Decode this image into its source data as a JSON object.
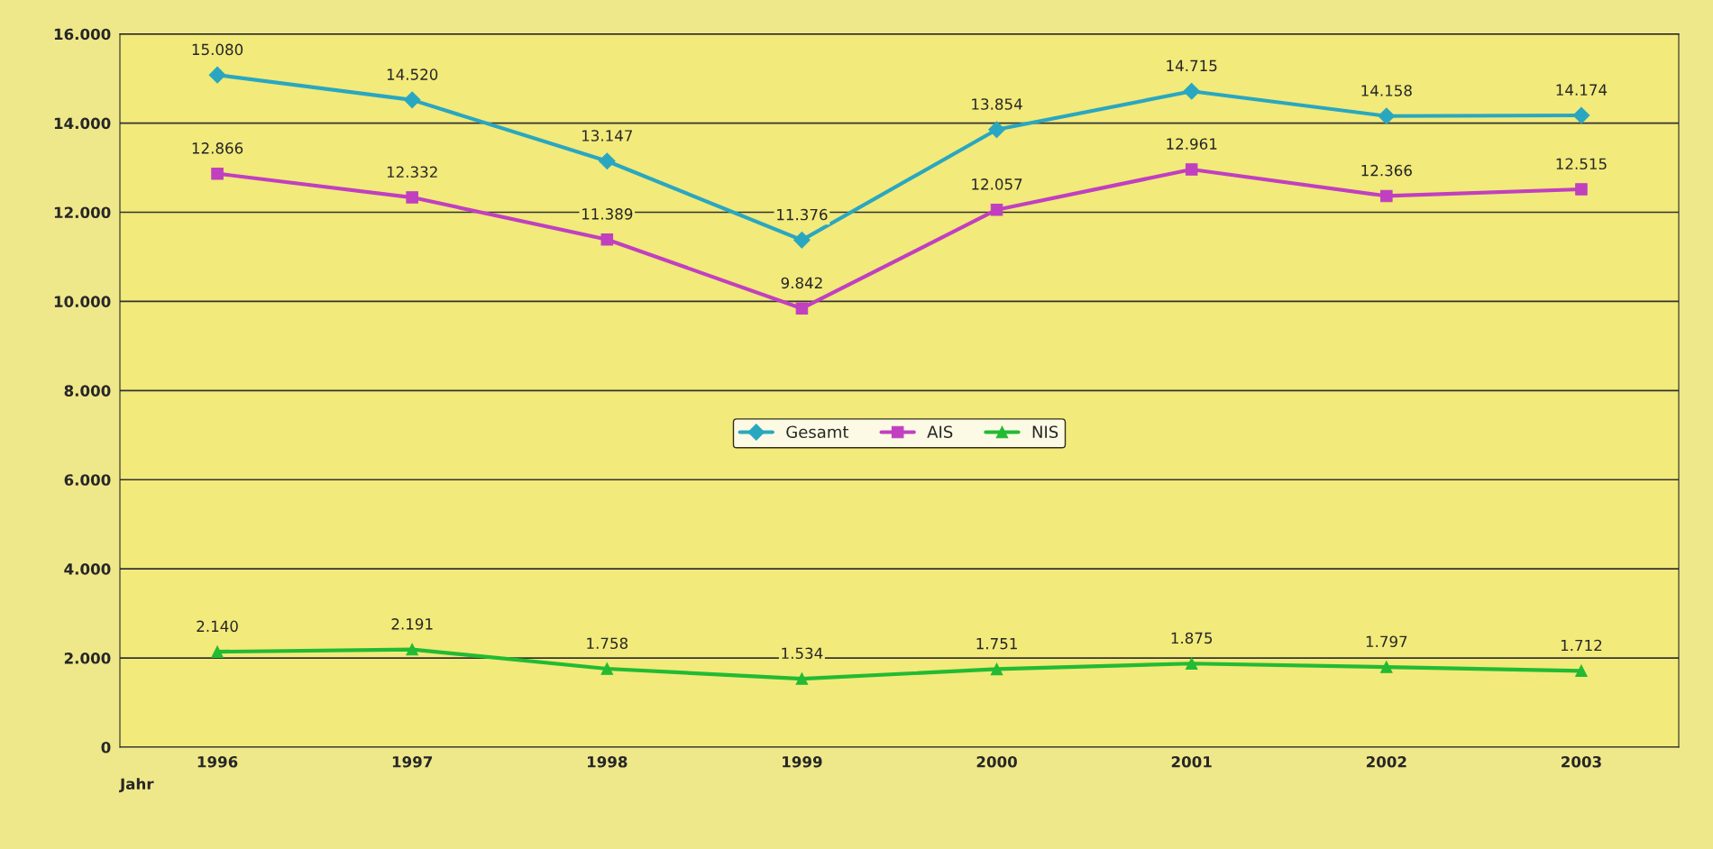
{
  "chart_data": {
    "type": "line",
    "xlabel": "Jahr",
    "categories": [
      "1996",
      "1997",
      "1998",
      "1999",
      "2000",
      "2001",
      "2002",
      "2003"
    ],
    "series": [
      {
        "name": "Gesamt",
        "color": "#2aa7c0",
        "marker": "diamond",
        "values": [
          15080,
          14520,
          13147,
          11376,
          13854,
          14715,
          14158,
          14174
        ],
        "value_labels": [
          "15.080",
          "14.520",
          "13.147",
          "11.376",
          "13.854",
          "14.715",
          "14.158",
          "14.174"
        ]
      },
      {
        "name": "AIS",
        "color": "#c040c0",
        "marker": "square",
        "values": [
          12866,
          12332,
          11389,
          9842,
          12057,
          12961,
          12366,
          12515
        ],
        "value_labels": [
          "12.866",
          "12.332",
          "11.389",
          "9.842",
          "12.057",
          "12.961",
          "12.366",
          "12.515"
        ]
      },
      {
        "name": "NIS",
        "color": "#22bb33",
        "marker": "triangle",
        "values": [
          2140,
          2191,
          1758,
          1534,
          1751,
          1875,
          1797,
          1712
        ],
        "value_labels": [
          "2.140",
          "2.191",
          "1.758",
          "1.534",
          "1.751",
          "1.875",
          "1.797",
          "1.712"
        ]
      }
    ],
    "ylim": [
      0,
      16000
    ],
    "yticks": [
      {
        "value": 0,
        "label": "0"
      },
      {
        "value": 2000,
        "label": "2.000"
      },
      {
        "value": 4000,
        "label": "4.000"
      },
      {
        "value": 6000,
        "label": "6.000"
      },
      {
        "value": 8000,
        "label": "8.000"
      },
      {
        "value": 10000,
        "label": "10.000"
      },
      {
        "value": 12000,
        "label": "12.000"
      },
      {
        "value": 14000,
        "label": "14.000"
      },
      {
        "value": 16000,
        "label": "16.000"
      }
    ],
    "grid": "y",
    "legend": "center",
    "line_style": "solid"
  }
}
